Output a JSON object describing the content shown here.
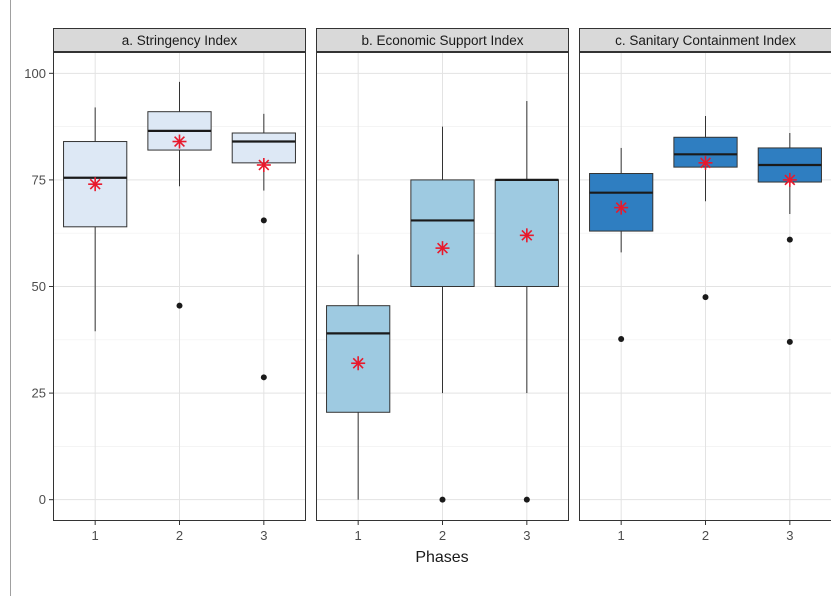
{
  "chart_data": {
    "type": "boxplot",
    "xlabel": "Phases",
    "ylabel": "",
    "ylim": [
      -5,
      105
    ],
    "y_ticks": [
      0,
      25,
      50,
      75,
      100
    ],
    "categories": [
      "1",
      "2",
      "3"
    ],
    "grid": true,
    "mean_marker": "asterisk",
    "mean_color": "#e8192c",
    "panels": [
      {
        "title": "a. Stringency Index",
        "fill": "#dde8f5",
        "boxes": [
          {
            "phase": "1",
            "whisker_low": 39.5,
            "q1": 64,
            "median": 75.5,
            "q3": 84,
            "whisker_high": 92,
            "mean": 74,
            "outliers": []
          },
          {
            "phase": "2",
            "whisker_low": 73.5,
            "q1": 82,
            "median": 86.5,
            "q3": 91,
            "whisker_high": 98,
            "mean": 84,
            "outliers": [
              45.5
            ]
          },
          {
            "phase": "3",
            "whisker_low": 72.5,
            "q1": 79,
            "median": 84,
            "q3": 86,
            "whisker_high": 90.5,
            "mean": 78.5,
            "outliers": [
              65.5,
              28.7
            ]
          }
        ]
      },
      {
        "title": "b. Economic Support Index",
        "fill": "#9ecae1",
        "boxes": [
          {
            "phase": "1",
            "whisker_low": 0,
            "q1": 20.5,
            "median": 39,
            "q3": 45.5,
            "whisker_high": 57.5,
            "mean": 32,
            "outliers": []
          },
          {
            "phase": "2",
            "whisker_low": 25,
            "q1": 50,
            "median": 65.5,
            "q3": 75,
            "whisker_high": 87.5,
            "mean": 59,
            "outliers": [
              0
            ]
          },
          {
            "phase": "3",
            "whisker_low": 25,
            "q1": 50,
            "median": 75,
            "q3": 75,
            "whisker_high": 93.5,
            "mean": 62,
            "outliers": [
              0
            ]
          }
        ]
      },
      {
        "title": "c. Sanitary Containment Index",
        "fill": "#2f7ec1",
        "boxes": [
          {
            "phase": "1",
            "whisker_low": 58,
            "q1": 63,
            "median": 72,
            "q3": 76.5,
            "whisker_high": 82.5,
            "mean": 68.5,
            "outliers": [
              37.7
            ]
          },
          {
            "phase": "2",
            "whisker_low": 70,
            "q1": 78,
            "median": 81,
            "q3": 85,
            "whisker_high": 90,
            "mean": 79,
            "outliers": [
              47.5
            ]
          },
          {
            "phase": "3",
            "whisker_low": 67,
            "q1": 74.5,
            "median": 78.5,
            "q3": 82.5,
            "whisker_high": 86,
            "mean": 75,
            "outliers": [
              61,
              37
            ]
          }
        ]
      }
    ]
  }
}
